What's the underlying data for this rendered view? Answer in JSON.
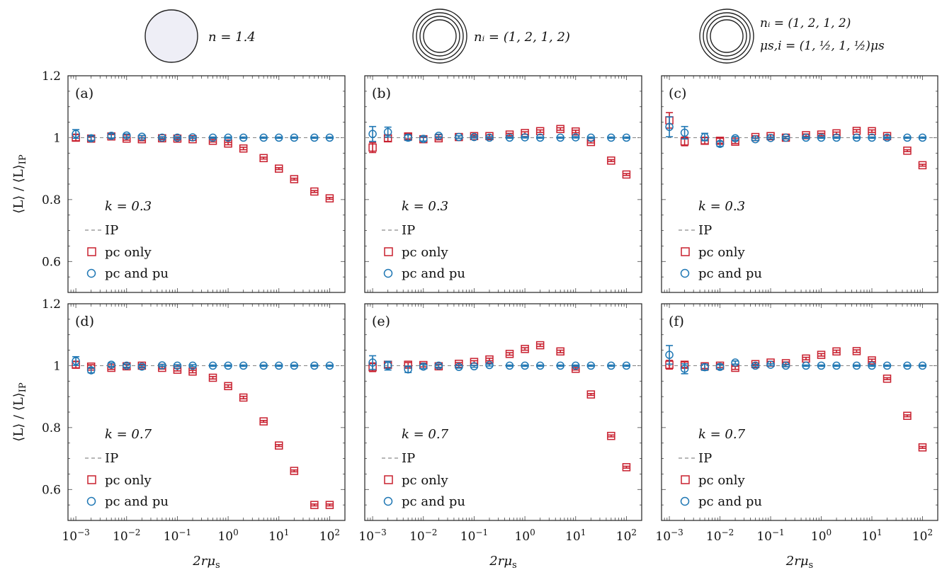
{
  "header": [
    {
      "label_lines": [
        "n = 1.4"
      ]
    },
    {
      "label_lines": [
        "nᵢ = (1, 2, 1, 2)"
      ]
    },
    {
      "label_lines": [
        "nᵢ  =  (1, 2, 1, 2)",
        "μs,i = (1, ½, 1, ½)μs"
      ]
    }
  ],
  "colors": {
    "pc_only": "#c8202f",
    "pc_and_pu": "#1f77b4",
    "ip": "#8a8a8a",
    "sphere_fill": "#eeeef6"
  },
  "chart_data": [
    {
      "type": "scatter",
      "panel": "(a)",
      "k_label": "k = 0.3",
      "xscale": "log",
      "xlim": [
        0.0007,
        200
      ],
      "ylim": [
        0.5,
        1.2
      ],
      "xticks": [
        "10−3",
        "10−2",
        "10−1",
        "100",
        "101",
        "102"
      ],
      "yticks": [
        "0.6",
        "0.8",
        "1",
        "1.2"
      ],
      "xlabel": "2rμs",
      "ylabel": "⟨L⟩ / ⟨L⟩IP",
      "legend": [
        "IP",
        "pc only",
        "pc and pu"
      ],
      "legend_position": "bottom-left",
      "x": [
        0.001,
        0.002,
        0.005,
        0.01,
        0.02,
        0.05,
        0.1,
        0.2,
        0.5,
        1,
        2,
        5,
        10,
        20,
        50,
        100
      ],
      "series": [
        {
          "name": "pc only",
          "marker": "square",
          "values": [
            1.0,
            0.997,
            1.004,
            0.997,
            0.995,
            0.998,
            0.997,
            0.995,
            0.99,
            0.981,
            0.965,
            0.934,
            0.9,
            0.866,
            0.826,
            0.804
          ],
          "err": [
            0.01,
            0.006,
            0.006,
            0.005,
            0.005,
            0.004,
            0.004,
            0.004,
            0.004,
            0.004,
            0.004,
            0.003,
            0.003,
            0.003,
            0.003,
            0.003
          ]
        },
        {
          "name": "pc and pu",
          "marker": "circle",
          "values": [
            1.012,
            0.998,
            1.006,
            1.007,
            1.003,
            1.0,
            1.0,
            1.001,
            1.0,
            1.0,
            1.0,
            1.0,
            1.0,
            1.0,
            1.0,
            1.0
          ],
          "err": [
            0.014,
            0.008,
            0.007,
            0.005,
            0.004,
            0.003,
            0.003,
            0.003,
            0.002,
            0.002,
            0.002,
            0.002,
            0.002,
            0.002,
            0.002,
            0.002
          ]
        }
      ]
    },
    {
      "type": "scatter",
      "panel": "(b)",
      "k_label": "k = 0.3",
      "xscale": "log",
      "xlim": [
        0.0007,
        200
      ],
      "ylim": [
        0.5,
        1.2
      ],
      "xticks": [
        "10−3",
        "10−2",
        "10−1",
        "100",
        "101",
        "102"
      ],
      "yticks": [],
      "xlabel": "2rμs",
      "ylabel": "",
      "legend": [
        "IP",
        "pc only",
        "pc and pu"
      ],
      "legend_position": "bottom-left",
      "x": [
        0.001,
        0.002,
        0.005,
        0.01,
        0.02,
        0.05,
        0.1,
        0.2,
        0.5,
        1,
        2,
        5,
        10,
        20,
        50,
        100
      ],
      "series": [
        {
          "name": "pc only",
          "marker": "square",
          "values": [
            0.968,
            0.998,
            1.004,
            0.995,
            0.998,
            1.002,
            1.005,
            1.005,
            1.01,
            1.015,
            1.021,
            1.028,
            1.02,
            0.986,
            0.926,
            0.881
          ],
          "err": [
            0.016,
            0.01,
            0.008,
            0.006,
            0.005,
            0.004,
            0.004,
            0.004,
            0.004,
            0.004,
            0.004,
            0.004,
            0.004,
            0.003,
            0.003,
            0.003
          ]
        },
        {
          "name": "pc and pu",
          "marker": "circle",
          "values": [
            1.012,
            1.018,
            1.0,
            0.996,
            1.006,
            1.002,
            1.002,
            1.0,
            1.0,
            1.001,
            1.0,
            1.0,
            1.001,
            1.0,
            1.0,
            1.0
          ],
          "err": [
            0.024,
            0.016,
            0.009,
            0.007,
            0.005,
            0.004,
            0.003,
            0.003,
            0.002,
            0.002,
            0.002,
            0.002,
            0.002,
            0.002,
            0.002,
            0.002
          ]
        }
      ]
    },
    {
      "type": "scatter",
      "panel": "(c)",
      "k_label": "k = 0.3",
      "xscale": "log",
      "xlim": [
        0.0007,
        200
      ],
      "ylim": [
        0.5,
        1.2
      ],
      "xticks": [
        "10−3",
        "10−2",
        "10−1",
        "100",
        "101",
        "102"
      ],
      "yticks": [],
      "xlabel": "2rμs",
      "ylabel": "",
      "legend": [
        "IP",
        "pc only",
        "pc and pu"
      ],
      "legend_position": "bottom-left",
      "x": [
        0.001,
        0.002,
        0.005,
        0.01,
        0.02,
        0.05,
        0.1,
        0.2,
        0.5,
        1,
        2,
        5,
        10,
        20,
        50,
        100
      ],
      "series": [
        {
          "name": "pc only",
          "marker": "square",
          "values": [
            1.056,
            0.988,
            0.99,
            0.99,
            0.987,
            1.002,
            1.005,
            1.0,
            1.008,
            1.01,
            1.014,
            1.022,
            1.021,
            1.005,
            0.958,
            0.911
          ],
          "err": [
            0.025,
            0.014,
            0.01,
            0.008,
            0.006,
            0.004,
            0.004,
            0.004,
            0.004,
            0.004,
            0.004,
            0.004,
            0.004,
            0.003,
            0.003,
            0.003
          ]
        },
        {
          "name": "pc and pu",
          "marker": "circle",
          "values": [
            1.035,
            1.016,
            1.002,
            0.98,
            0.998,
            0.995,
            0.999,
            1.0,
            1.0,
            1.0,
            1.0,
            1.0,
            1.0,
            1.0,
            1.0,
            1.0
          ],
          "err": [
            0.032,
            0.02,
            0.012,
            0.008,
            0.006,
            0.004,
            0.003,
            0.003,
            0.002,
            0.002,
            0.002,
            0.002,
            0.002,
            0.002,
            0.002,
            0.002
          ]
        }
      ]
    },
    {
      "type": "scatter",
      "panel": "(d)",
      "k_label": "k = 0.7",
      "xscale": "log",
      "xlim": [
        0.0007,
        200
      ],
      "ylim": [
        0.5,
        1.2
      ],
      "xticks": [
        "10−3",
        "10−2",
        "10−1",
        "100",
        "101",
        "102"
      ],
      "yticks": [
        "0.6",
        "0.8",
        "1",
        "1.2"
      ],
      "xlabel": "2rμs",
      "ylabel": "⟨L⟩ / ⟨L⟩IP",
      "legend": [
        "IP",
        "pc only",
        "pc and pu"
      ],
      "legend_position": "bottom-left",
      "x": [
        0.001,
        0.002,
        0.005,
        0.01,
        0.02,
        0.05,
        0.1,
        0.2,
        0.5,
        1,
        2,
        5,
        10,
        20,
        50,
        100
      ],
      "series": [
        {
          "name": "pc only",
          "marker": "square",
          "values": [
            1.003,
            0.997,
            0.993,
            0.998,
            1.0,
            0.993,
            0.987,
            0.981,
            0.961,
            0.934,
            0.897,
            0.82,
            0.742,
            0.66,
            0.55,
            0.55
          ],
          "err": [
            0.01,
            0.006,
            0.005,
            0.005,
            0.004,
            0.004,
            0.004,
            0.004,
            0.004,
            0.004,
            0.004,
            0.003,
            0.003,
            0.003,
            0.003,
            0.003
          ]
        },
        {
          "name": "pc and pu",
          "marker": "circle",
          "values": [
            1.015,
            0.985,
            1.003,
            1.0,
            0.997,
            1.001,
            1.0,
            1.0,
            1.0,
            1.0,
            1.0,
            1.0,
            1.0,
            1.0,
            1.0,
            1.0
          ],
          "err": [
            0.014,
            0.008,
            0.006,
            0.005,
            0.004,
            0.003,
            0.003,
            0.003,
            0.002,
            0.002,
            0.002,
            0.002,
            0.002,
            0.002,
            0.002,
            0.002
          ]
        }
      ]
    },
    {
      "type": "scatter",
      "panel": "(e)",
      "k_label": "k = 0.7",
      "xscale": "log",
      "xlim": [
        0.0007,
        200
      ],
      "ylim": [
        0.5,
        1.2
      ],
      "xticks": [
        "10−3",
        "10−2",
        "10−1",
        "100",
        "101",
        "102"
      ],
      "yticks": [],
      "xlabel": "2rμs",
      "ylabel": "",
      "legend": [
        "IP",
        "pc only",
        "pc and pu"
      ],
      "legend_position": "bottom-left",
      "x": [
        0.001,
        0.002,
        0.005,
        0.01,
        0.02,
        0.05,
        0.1,
        0.2,
        0.5,
        1,
        2,
        5,
        10,
        20,
        50,
        100
      ],
      "series": [
        {
          "name": "pc only",
          "marker": "square",
          "values": [
            0.995,
            1.003,
            1.003,
            1.002,
            0.998,
            1.006,
            1.012,
            1.02,
            1.038,
            1.054,
            1.066,
            1.046,
            0.99,
            0.907,
            0.773,
            0.672
          ],
          "err": [
            0.014,
            0.009,
            0.007,
            0.006,
            0.005,
            0.004,
            0.004,
            0.004,
            0.004,
            0.004,
            0.004,
            0.004,
            0.004,
            0.003,
            0.003,
            0.003
          ]
        },
        {
          "name": "pc and pu",
          "marker": "circle",
          "values": [
            1.01,
            1.0,
            0.988,
            0.997,
            1.0,
            0.996,
            0.998,
            1.002,
            1.0,
            1.0,
            1.0,
            1.0,
            1.0,
            1.0,
            1.0,
            1.0
          ],
          "err": [
            0.022,
            0.014,
            0.01,
            0.007,
            0.005,
            0.004,
            0.003,
            0.003,
            0.002,
            0.002,
            0.002,
            0.002,
            0.002,
            0.002,
            0.002,
            0.002
          ]
        }
      ]
    },
    {
      "type": "scatter",
      "panel": "(f)",
      "k_label": "k = 0.7",
      "xscale": "log",
      "xlim": [
        0.0007,
        200
      ],
      "ylim": [
        0.5,
        1.2
      ],
      "xticks": [
        "10−3",
        "10−2",
        "10−1",
        "100",
        "101",
        "102"
      ],
      "yticks": [],
      "xlabel": "2rμs",
      "ylabel": "",
      "legend": [
        "IP",
        "pc only",
        "pc and pu"
      ],
      "legend_position": "bottom-left",
      "x": [
        0.001,
        0.002,
        0.005,
        0.01,
        0.02,
        0.05,
        0.1,
        0.2,
        0.5,
        1,
        2,
        5,
        10,
        20,
        50,
        100
      ],
      "series": [
        {
          "name": "pc only",
          "marker": "square",
          "values": [
            1.003,
            1.003,
            0.998,
            1.0,
            0.993,
            1.005,
            1.01,
            1.008,
            1.023,
            1.035,
            1.046,
            1.047,
            1.017,
            0.958,
            0.838,
            0.736
          ],
          "err": [
            0.014,
            0.009,
            0.007,
            0.006,
            0.005,
            0.004,
            0.004,
            0.004,
            0.004,
            0.004,
            0.004,
            0.004,
            0.004,
            0.003,
            0.003,
            0.003
          ]
        },
        {
          "name": "pc and pu",
          "marker": "circle",
          "values": [
            1.035,
            0.99,
            0.995,
            0.996,
            1.01,
            1.0,
            1.003,
            1.0,
            1.0,
            1.0,
            1.0,
            1.0,
            1.0,
            1.0,
            1.0,
            1.0
          ],
          "err": [
            0.03,
            0.016,
            0.01,
            0.007,
            0.005,
            0.004,
            0.003,
            0.003,
            0.002,
            0.002,
            0.002,
            0.002,
            0.002,
            0.002,
            0.002,
            0.002
          ]
        }
      ]
    }
  ]
}
